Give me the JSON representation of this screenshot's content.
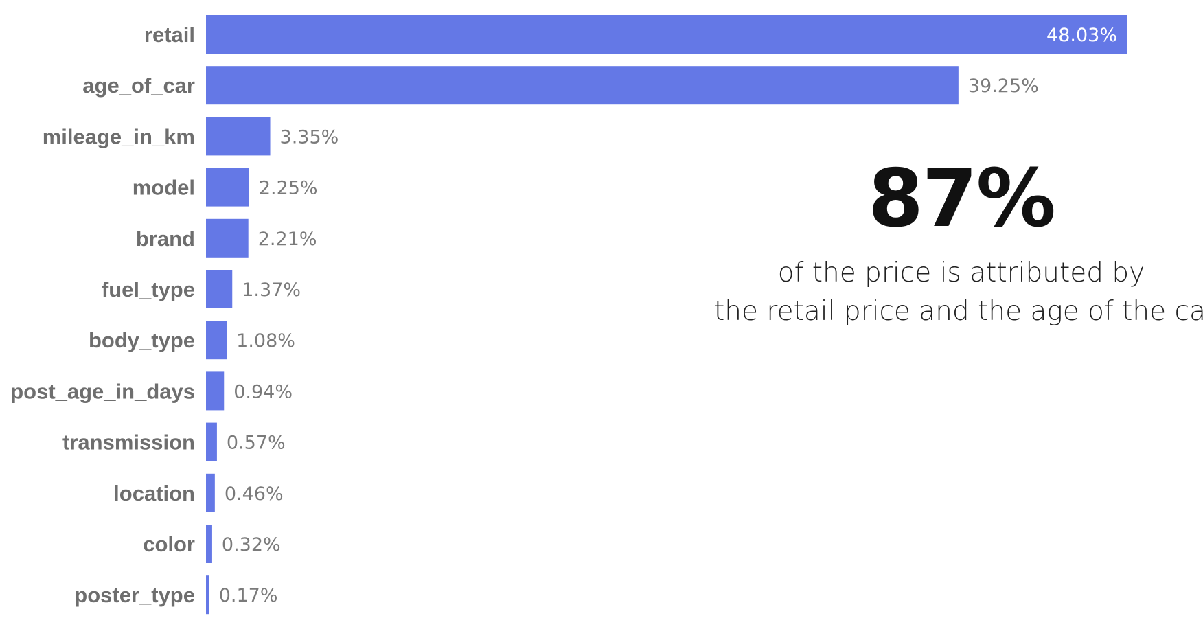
{
  "chart_data": {
    "type": "bar",
    "orientation": "horizontal",
    "categories": [
      "retail",
      "age_of_car",
      "mileage_in_km",
      "model",
      "brand",
      "fuel_type",
      "body_type",
      "post_age_in_days",
      "transmission",
      "location",
      "color",
      "poster_type"
    ],
    "values": [
      48.03,
      39.25,
      3.35,
      2.25,
      2.21,
      1.37,
      1.08,
      0.94,
      0.57,
      0.46,
      0.32,
      0.17
    ],
    "value_labels": [
      "48.03%",
      "39.25%",
      "3.35%",
      "2.25%",
      "2.21%",
      "1.37%",
      "1.08%",
      "0.94%",
      "0.57%",
      "0.46%",
      "0.32%",
      "0.17%"
    ],
    "unit": "%",
    "xlim": [
      0,
      48.03
    ],
    "bar_color": "#6478e6",
    "grid": false,
    "title": "",
    "xlabel": "",
    "ylabel": ""
  },
  "callout": {
    "big_number": "87%",
    "line1": "of the price is attributed by",
    "line2": "the retail price and the age of the car"
  }
}
